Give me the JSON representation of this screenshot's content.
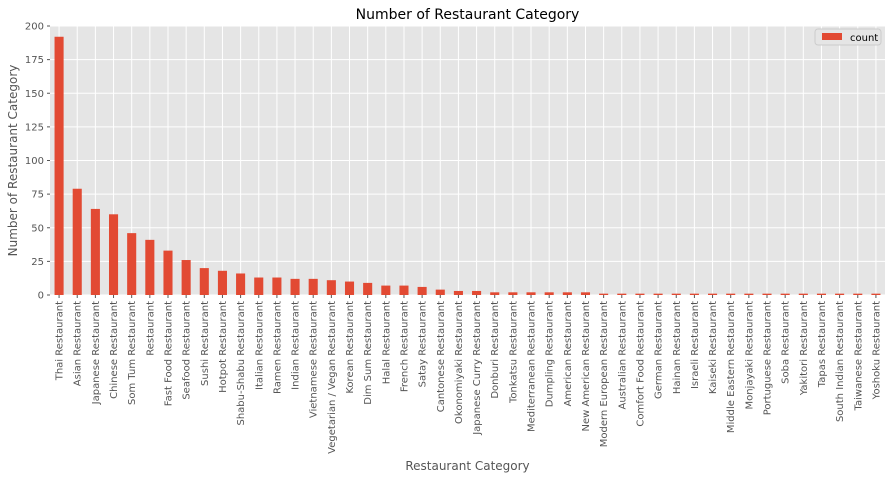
{
  "chart_data": {
    "type": "bar",
    "title": "Number of Restaurant Category",
    "xlabel": "Restaurant Category",
    "ylabel": "Number of Restaurant Category",
    "ylim": [
      0,
      200
    ],
    "yticks": [
      0,
      25,
      50,
      75,
      100,
      125,
      150,
      175,
      200
    ],
    "grid": true,
    "legend": "top-right",
    "bar_color": "#E24A33",
    "background_color": "#E5E5E5",
    "categories": [
      "Thai Restaurant",
      "Asian Restaurant",
      "Japanese Restaurant",
      "Chinese Restaurant",
      "Som Tum Restaurant",
      "Restaurant",
      "Fast Food Restaurant",
      "Seafood Restaurant",
      "Sushi Restaurant",
      "Hotpot Restaurant",
      "Shabu-Shabu Restaurant",
      "Italian Restaurant",
      "Ramen Restaurant",
      "Indian Restaurant",
      "Vietnamese Restaurant",
      "Vegetarian / Vegan Restaurant",
      "Korean Restaurant",
      "Dim Sum Restaurant",
      "Halal Restaurant",
      "French Restaurant",
      "Satay Restaurant",
      "Cantonese Restaurant",
      "Okonomiyaki Restaurant",
      "Japanese Curry Restaurant",
      "Donburi Restaurant",
      "Tonkatsu Restaurant",
      "Mediterranean Restaurant",
      "Dumpling Restaurant",
      "American Restaurant",
      "New American Restaurant",
      "Modern European Restaurant",
      "Australian Restaurant",
      "Comfort Food Restaurant",
      "German Restaurant",
      "Hainan Restaurant",
      "Israeli Restaurant",
      "Kaiseki Restaurant",
      "Middle Eastern Restaurant",
      "Monjayaki Restaurant",
      "Portuguese Restaurant",
      "Soba Restaurant",
      "Yakitori Restaurant",
      "Tapas Restaurant",
      "South Indian Restaurant",
      "Taiwanese Restaurant",
      "Yoshoku Restaurant"
    ],
    "series": [
      {
        "name": "count",
        "values": [
          192,
          79,
          64,
          60,
          46,
          41,
          33,
          26,
          20,
          18,
          16,
          13,
          13,
          12,
          12,
          11,
          10,
          9,
          7,
          7,
          6,
          4,
          3,
          3,
          2,
          2,
          2,
          2,
          2,
          2,
          1,
          1,
          1,
          1,
          1,
          1,
          1,
          1,
          1,
          1,
          1,
          1,
          1,
          1,
          1,
          1
        ]
      }
    ]
  }
}
